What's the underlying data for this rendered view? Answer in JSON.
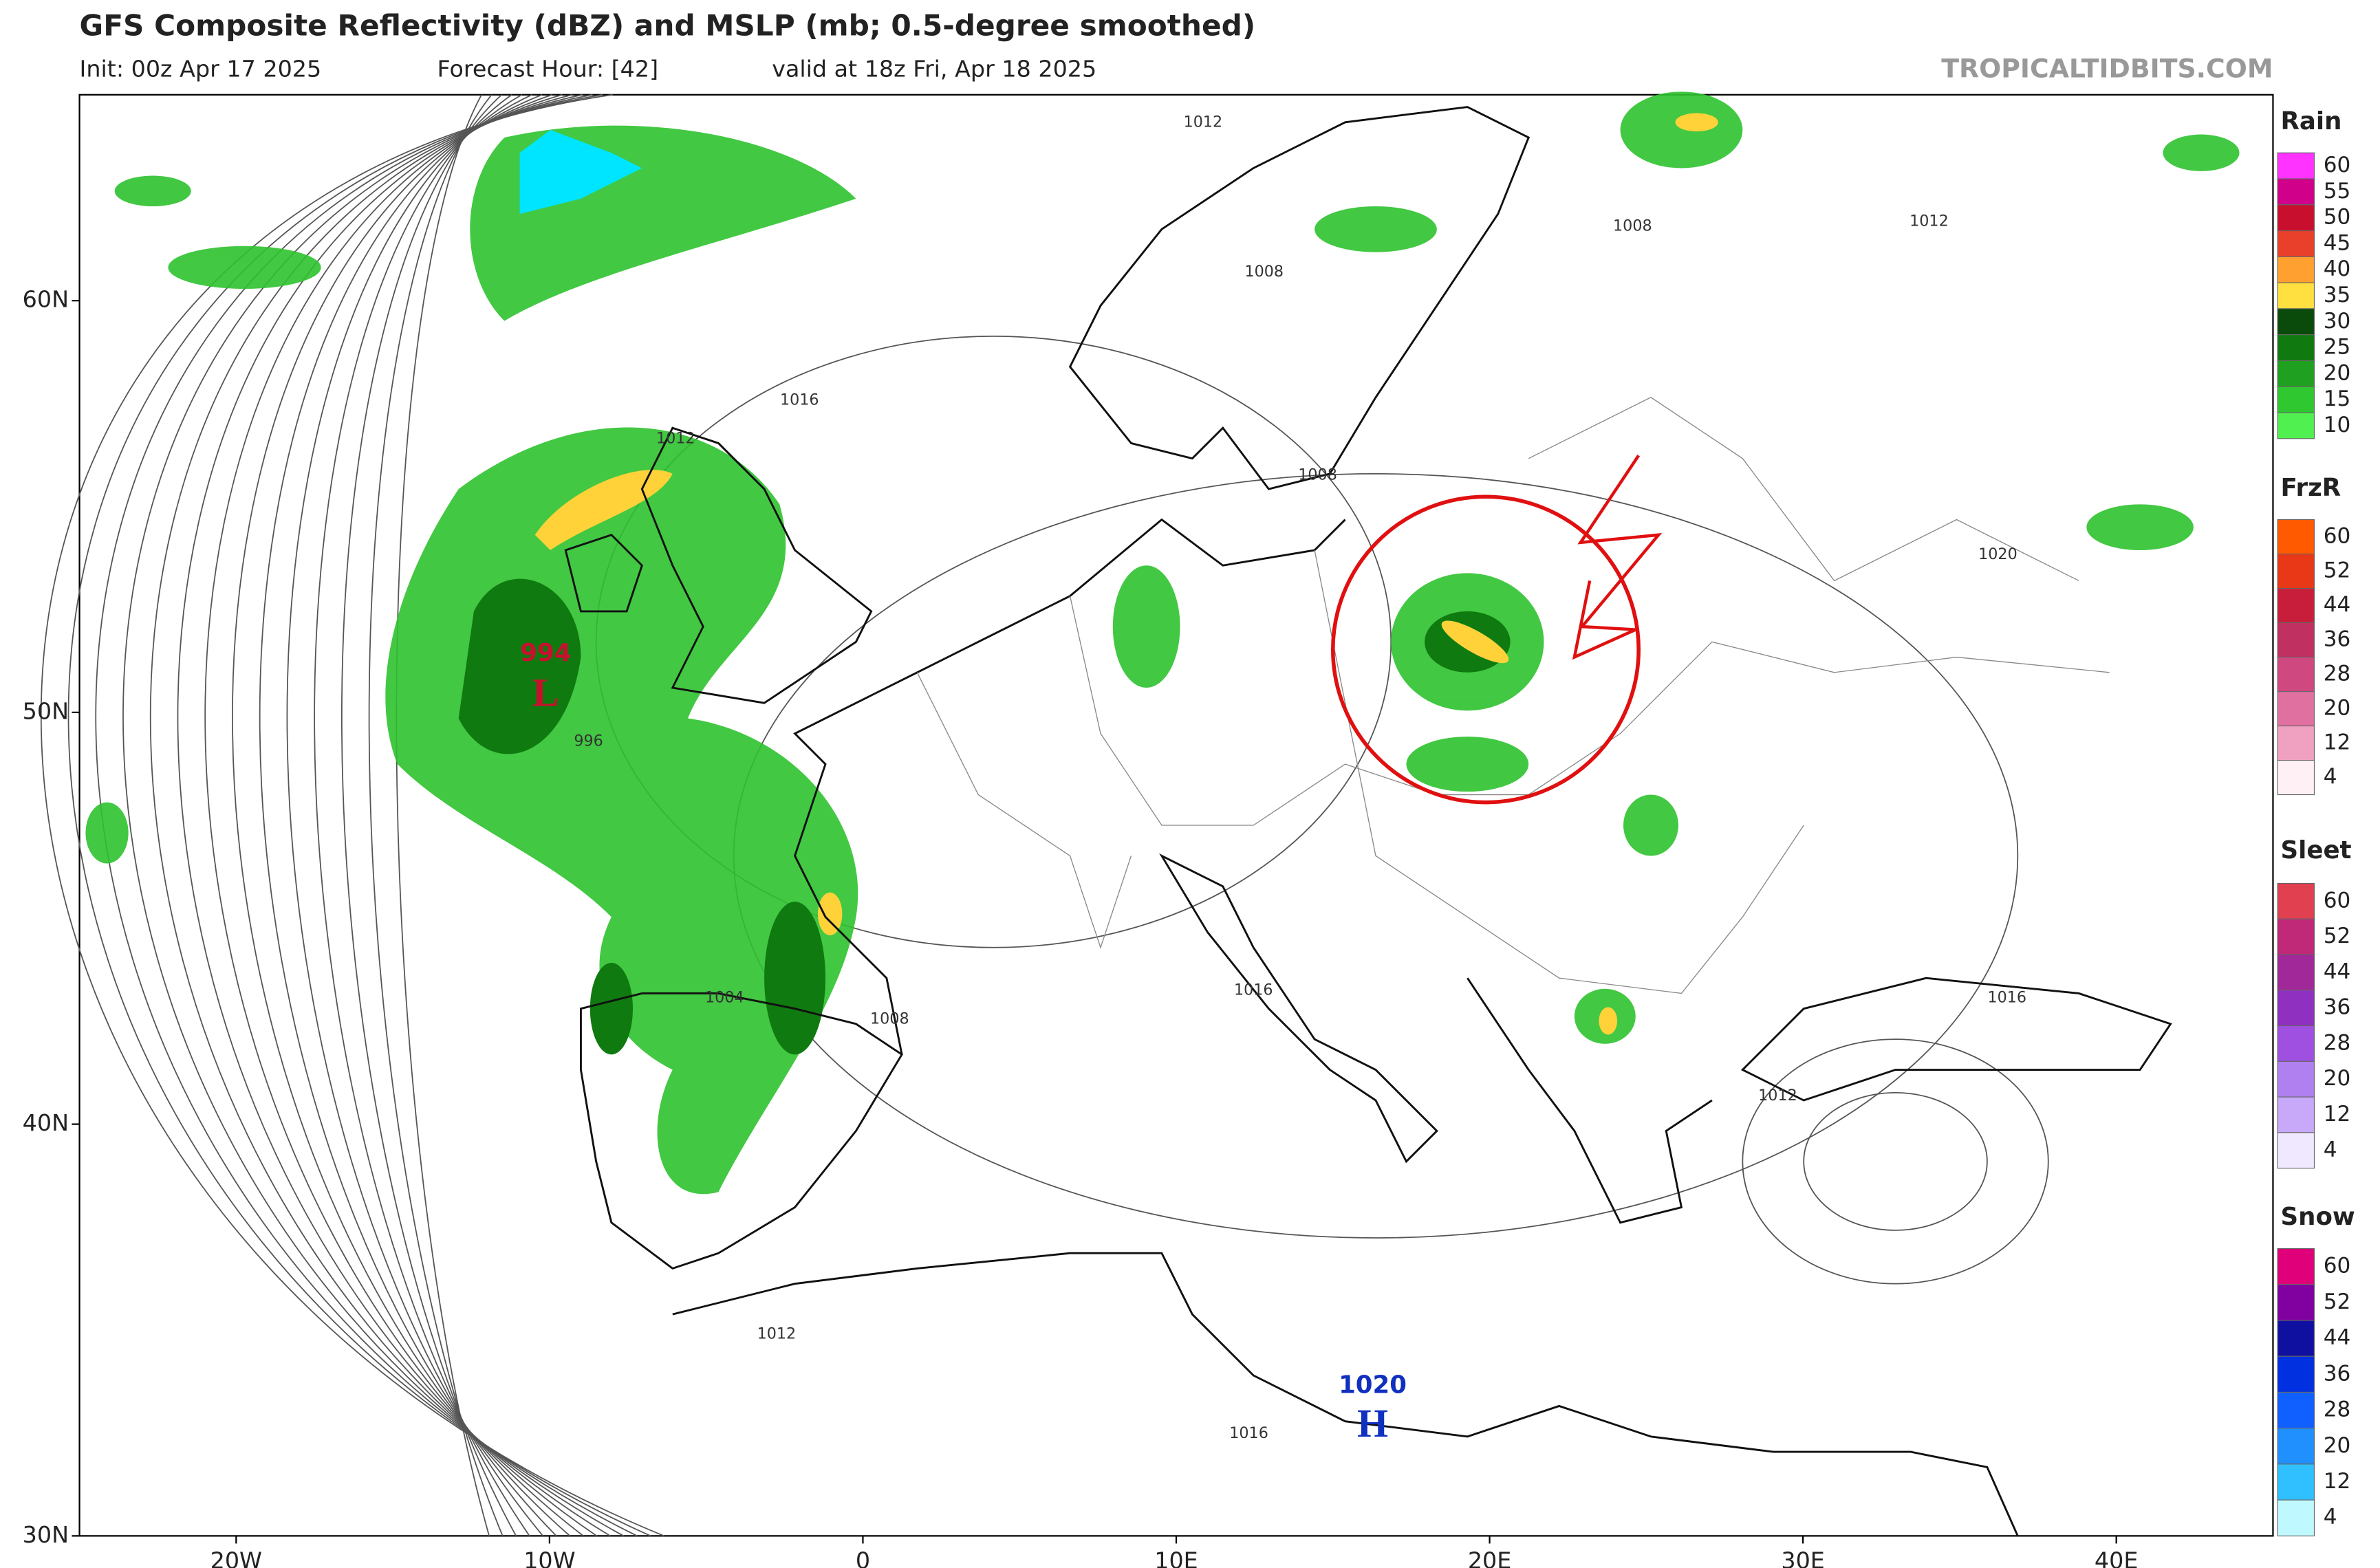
{
  "header": {
    "title": "GFS Composite Reflectivity (dBZ) and MSLP (mb; 0.5-degree smoothed)",
    "init": "Init: 00z Apr 17 2025",
    "forecast_hour": "Forecast Hour: [42]",
    "valid": "valid at 18z Fri, Apr 18 2025",
    "site": "TROPICALTIDBITS.COM"
  },
  "map": {
    "lon_range": [
      -25,
      45
    ],
    "lat_range": [
      30,
      65
    ],
    "lat_ticks": [
      {
        "value": 60,
        "label": "60N"
      },
      {
        "value": 50,
        "label": "50N"
      },
      {
        "value": 40,
        "label": "40N"
      },
      {
        "value": 30,
        "label": "30N"
      }
    ],
    "lon_ticks": [
      {
        "value": -20,
        "label": "20W"
      },
      {
        "value": -10,
        "label": "10W"
      },
      {
        "value": 0,
        "label": "0"
      },
      {
        "value": 10,
        "label": "10E"
      },
      {
        "value": 20,
        "label": "20E"
      },
      {
        "value": 30,
        "label": "30E"
      },
      {
        "value": 40,
        "label": "40E"
      }
    ],
    "isobar_labels": [
      1012,
      1008,
      1016,
      1012,
      1008,
      1020,
      1008,
      1012,
      996,
      1004,
      1008,
      1016,
      1016,
      1012,
      1012,
      1016
    ],
    "low": {
      "pressure": 994,
      "label": "L"
    },
    "high": {
      "pressure": 1020,
      "label": "H"
    }
  },
  "legend": [
    {
      "title": "Rain",
      "levels": [
        {
          "value": 60,
          "color": "#ff33ff"
        },
        {
          "value": 55,
          "color": "#d0008a"
        },
        {
          "value": 50,
          "color": "#c8102e"
        },
        {
          "value": 45,
          "color": "#e8402a"
        },
        {
          "value": 40,
          "color": "#ffa030"
        },
        {
          "value": 35,
          "color": "#ffe040"
        },
        {
          "value": 30,
          "color": "#0a4a0a"
        },
        {
          "value": 25,
          "color": "#107a10"
        },
        {
          "value": 20,
          "color": "#20a020"
        },
        {
          "value": 15,
          "color": "#30c830"
        },
        {
          "value": 10,
          "color": "#50f050"
        }
      ]
    },
    {
      "title": "FrzR",
      "levels": [
        {
          "value": 60,
          "color": "#ff5a00"
        },
        {
          "value": 52,
          "color": "#e83818"
        },
        {
          "value": 44,
          "color": "#c81e3c"
        },
        {
          "value": 36,
          "color": "#c03060"
        },
        {
          "value": 28,
          "color": "#d04880"
        },
        {
          "value": 20,
          "color": "#e070a0"
        },
        {
          "value": 12,
          "color": "#f0a0c0"
        },
        {
          "value": 4,
          "color": "#fff0f5"
        }
      ]
    },
    {
      "title": "Sleet",
      "levels": [
        {
          "value": 60,
          "color": "#e04050"
        },
        {
          "value": 52,
          "color": "#c02878"
        },
        {
          "value": 44,
          "color": "#a02898"
        },
        {
          "value": 36,
          "color": "#9030c0"
        },
        {
          "value": 28,
          "color": "#a050e0"
        },
        {
          "value": 20,
          "color": "#b080f0"
        },
        {
          "value": 12,
          "color": "#c8a8f8"
        },
        {
          "value": 4,
          "color": "#f0e8ff"
        }
      ]
    },
    {
      "title": "Snow",
      "levels": [
        {
          "value": 60,
          "color": "#e0007a"
        },
        {
          "value": 52,
          "color": "#8000a0"
        },
        {
          "value": 44,
          "color": "#1010a0"
        },
        {
          "value": 36,
          "color": "#0030e0"
        },
        {
          "value": 28,
          "color": "#1060ff"
        },
        {
          "value": 20,
          "color": "#2090ff"
        },
        {
          "value": 12,
          "color": "#30c0ff"
        },
        {
          "value": 4,
          "color": "#c0f8ff"
        }
      ]
    }
  ]
}
